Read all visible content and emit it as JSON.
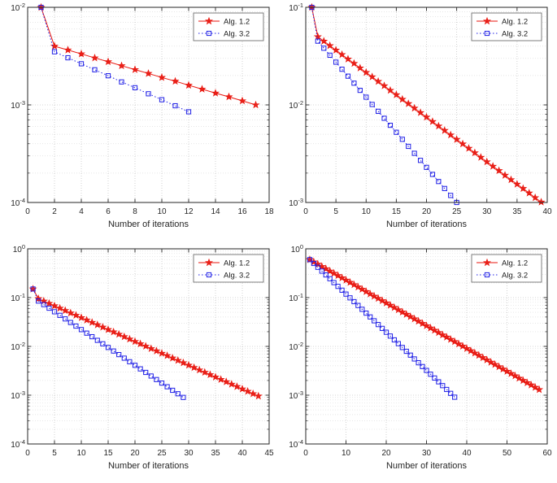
{
  "style": {
    "axis_color": "#262626",
    "tick_label_color": "#262626",
    "grid_major_color": "#c6c6c6",
    "grid_minor_color": "#dedede",
    "legend_border_color": "#707070",
    "background": "#ffffff"
  },
  "chart_data": [
    {
      "type": "line",
      "position": "top-left",
      "title": "",
      "xlabel": "Number of iterations",
      "ylabel": "",
      "yscale": "log",
      "grid": true,
      "xlim": [
        0,
        18
      ],
      "xticks": [
        0,
        2,
        4,
        6,
        8,
        10,
        12,
        14,
        16,
        18
      ],
      "ylog": [
        -4,
        -2
      ],
      "ytick_labels": [
        "10^-4",
        "10^-3",
        "10^-2"
      ],
      "legend": {
        "position": "top-right",
        "entries": [
          "Alg. 1.2",
          "Alg. 3.2"
        ]
      },
      "series": [
        {
          "name": "Alg. 1.2",
          "color": "#e8150d",
          "line": "solid",
          "marker": "star",
          "x": [
            1,
            2,
            3,
            4,
            5,
            6,
            7,
            8,
            9,
            10,
            11,
            12,
            13,
            14,
            15,
            16,
            17
          ],
          "y": [
            0.01,
            0.004,
            0.00365,
            0.00333,
            0.00303,
            0.00277,
            0.00252,
            0.0023,
            0.0021,
            0.00191,
            0.00175,
            0.00159,
            0.00145,
            0.00132,
            0.00121,
            0.0011,
            0.001
          ]
        },
        {
          "name": "Alg. 3.2",
          "color": "#2020e6",
          "line": "dotted",
          "marker": "square",
          "x": [
            1,
            2,
            3,
            4,
            5,
            6,
            7,
            8,
            9,
            10,
            11,
            12
          ],
          "y": [
            0.01,
            0.0035,
            0.00304,
            0.00264,
            0.00229,
            0.00199,
            0.00172,
            0.0015,
            0.0013,
            0.00113,
            0.00098,
            0.00085
          ]
        }
      ]
    },
    {
      "type": "line",
      "position": "top-right",
      "title": "",
      "xlabel": "Number of iterations",
      "ylabel": "",
      "yscale": "log",
      "grid": true,
      "xlim": [
        0,
        40
      ],
      "xticks": [
        0,
        5,
        10,
        15,
        20,
        25,
        30,
        35,
        40
      ],
      "ylog": [
        -3,
        -1
      ],
      "ytick_labels": [
        "10^-3",
        "10^-2",
        "10^-1"
      ],
      "legend": {
        "position": "top-right",
        "entries": [
          "Alg. 1.2",
          "Alg. 3.2"
        ]
      },
      "series": [
        {
          "name": "Alg. 1.2",
          "color": "#e8150d",
          "line": "solid",
          "marker": "star",
          "x": [
            1,
            2,
            3,
            4,
            5,
            6,
            7,
            8,
            9,
            10,
            11,
            12,
            13,
            14,
            15,
            16,
            17,
            18,
            19,
            20,
            21,
            22,
            23,
            24,
            25,
            26,
            27,
            28,
            29,
            30,
            31,
            32,
            33,
            34,
            35,
            36,
            37,
            38,
            39
          ],
          "y": [
            0.1,
            0.05,
            0.045,
            0.0405,
            0.0364,
            0.0328,
            0.0295,
            0.0266,
            0.0239,
            0.0215,
            0.0194,
            0.0174,
            0.0157,
            0.0141,
            0.0127,
            0.0114,
            0.0103,
            0.00926,
            0.00833,
            0.0075,
            0.00675,
            0.00607,
            0.00547,
            0.00492,
            0.00443,
            0.00398,
            0.00359,
            0.00323,
            0.0029,
            0.00261,
            0.00235,
            0.00212,
            0.0019,
            0.00171,
            0.00154,
            0.00139,
            0.00125,
            0.00112,
            0.00101
          ]
        },
        {
          "name": "Alg. 3.2",
          "color": "#2020e6",
          "line": "dotted",
          "marker": "square",
          "x": [
            1,
            2,
            3,
            4,
            5,
            6,
            7,
            8,
            9,
            10,
            11,
            12,
            13,
            14,
            15,
            16,
            17,
            18,
            19,
            20,
            21,
            22,
            23,
            24,
            25
          ],
          "y": [
            0.1,
            0.045,
            0.0381,
            0.0323,
            0.0274,
            0.0232,
            0.0197,
            0.0167,
            0.0141,
            0.012,
            0.0101,
            0.0086,
            0.00729,
            0.00618,
            0.00524,
            0.00444,
            0.00376,
            0.00319,
            0.0027,
            0.00229,
            0.00194,
            0.00164,
            0.00139,
            0.00118,
            0.001
          ]
        }
      ]
    },
    {
      "type": "line",
      "position": "bottom-left",
      "title": "",
      "xlabel": "Number of iterations",
      "ylabel": "",
      "yscale": "log",
      "grid": true,
      "xlim": [
        0,
        45
      ],
      "xticks": [
        0,
        5,
        10,
        15,
        20,
        25,
        30,
        35,
        40,
        45
      ],
      "ylog": [
        -4,
        0
      ],
      "ytick_labels": [
        "10^-4",
        "10^-3",
        "10^-2",
        "10^-1",
        "10^0"
      ],
      "legend": {
        "position": "top-right",
        "entries": [
          "Alg. 1.2",
          "Alg. 3.2"
        ]
      },
      "series": [
        {
          "name": "Alg. 1.2",
          "color": "#e8150d",
          "line": "solid",
          "marker": "star",
          "x": [
            1,
            2,
            3,
            4,
            5,
            6,
            7,
            8,
            9,
            10,
            11,
            12,
            13,
            14,
            15,
            16,
            17,
            18,
            19,
            20,
            21,
            22,
            23,
            24,
            25,
            26,
            27,
            28,
            29,
            30,
            31,
            32,
            33,
            34,
            35,
            36,
            37,
            38,
            39,
            40,
            41,
            42,
            43
          ],
          "y": [
            0.15,
            0.095,
            0.0849,
            0.0759,
            0.0679,
            0.0607,
            0.0543,
            0.0485,
            0.0434,
            0.0388,
            0.0347,
            0.031,
            0.0277,
            0.0248,
            0.0221,
            0.0198,
            0.0177,
            0.0158,
            0.0141,
            0.0126,
            0.0113,
            0.0101,
            0.009,
            0.00807,
            0.00722,
            0.00645,
            0.00577,
            0.00516,
            0.00461,
            0.00412,
            0.00368,
            0.00329,
            0.00294,
            0.00263,
            0.00235,
            0.0021,
            0.00188,
            0.00168,
            0.0015,
            0.00134,
            0.0012,
            0.00107,
            0.00096
          ]
        },
        {
          "name": "Alg. 3.2",
          "color": "#2020e6",
          "line": "dotted",
          "marker": "square",
          "x": [
            1,
            2,
            3,
            4,
            5,
            6,
            7,
            8,
            9,
            10,
            11,
            12,
            13,
            14,
            15,
            16,
            17,
            18,
            19,
            20,
            21,
            22,
            23,
            24,
            25,
            26,
            27,
            28,
            29
          ],
          "y": [
            0.15,
            0.085,
            0.0718,
            0.0607,
            0.0513,
            0.0433,
            0.0366,
            0.0309,
            0.0261,
            0.0221,
            0.0187,
            0.0158,
            0.0133,
            0.0113,
            0.00951,
            0.00804,
            0.00679,
            0.00574,
            0.00485,
            0.0041,
            0.00346,
            0.00293,
            0.00247,
            0.00209,
            0.00177,
            0.00149,
            0.00126,
            0.00107,
            0.0009
          ]
        }
      ]
    },
    {
      "type": "line",
      "position": "bottom-right",
      "title": "",
      "xlabel": "Number of iterations",
      "ylabel": "",
      "yscale": "log",
      "grid": true,
      "xlim": [
        0,
        60
      ],
      "xticks": [
        0,
        10,
        20,
        30,
        40,
        50,
        60
      ],
      "ylog": [
        -4,
        0
      ],
      "ytick_labels": [
        "10^-4",
        "10^-3",
        "10^-2",
        "10^-1",
        "10^0"
      ],
      "legend": {
        "position": "top-right",
        "entries": [
          "Alg. 1.2",
          "Alg. 3.2"
        ]
      },
      "series": [
        {
          "name": "Alg. 1.2",
          "color": "#e8150d",
          "line": "solid",
          "marker": "star",
          "x": [
            1,
            2,
            3,
            4,
            5,
            6,
            7,
            8,
            9,
            10,
            11,
            12,
            13,
            14,
            15,
            16,
            17,
            18,
            19,
            20,
            21,
            22,
            23,
            24,
            25,
            26,
            27,
            28,
            29,
            30,
            31,
            32,
            33,
            34,
            35,
            36,
            37,
            38,
            39,
            40,
            41,
            42,
            43,
            44,
            45,
            46,
            47,
            48,
            49,
            50,
            51,
            52,
            53,
            54,
            55,
            56,
            57,
            58
          ],
          "y": [
            0.6,
            0.539,
            0.484,
            0.434,
            0.39,
            0.35,
            0.315,
            0.283,
            0.254,
            0.228,
            0.205,
            0.184,
            0.165,
            0.148,
            0.133,
            0.119,
            0.107,
            0.0963,
            0.0865,
            0.0777,
            0.0698,
            0.0626,
            0.0562,
            0.0505,
            0.0454,
            0.0407,
            0.0366,
            0.0328,
            0.0295,
            0.0265,
            0.0238,
            0.0214,
            0.0192,
            0.0172,
            0.0155,
            0.0139,
            0.0125,
            0.0112,
            0.0101,
            0.00904,
            0.00812,
            0.00729,
            0.00655,
            0.00588,
            0.00528,
            0.00474,
            0.00426,
            0.00382,
            0.00343,
            0.00308,
            0.00277,
            0.00249,
            0.00223,
            0.002,
            0.0018,
            0.00162,
            0.00145,
            0.0013
          ]
        },
        {
          "name": "Alg. 3.2",
          "color": "#2020e6",
          "line": "dotted",
          "marker": "square",
          "x": [
            1,
            2,
            3,
            4,
            5,
            6,
            7,
            8,
            9,
            10,
            11,
            12,
            13,
            14,
            15,
            16,
            17,
            18,
            19,
            20,
            21,
            22,
            23,
            24,
            25,
            26,
            27,
            28,
            29,
            30,
            31,
            32,
            33,
            34,
            35,
            36,
            37
          ],
          "y": [
            0.6,
            0.501,
            0.418,
            0.349,
            0.292,
            0.244,
            0.203,
            0.17,
            0.142,
            0.118,
            0.0989,
            0.0826,
            0.069,
            0.0576,
            0.0481,
            0.0402,
            0.0335,
            0.028,
            0.0234,
            0.0195,
            0.0163,
            0.0136,
            0.0114,
            0.0095,
            0.00793,
            0.00662,
            0.00553,
            0.00462,
            0.00386,
            0.00322,
            0.00269,
            0.00225,
            0.00188,
            0.00157,
            0.00131,
            0.00109,
            0.00091
          ]
        }
      ]
    }
  ]
}
